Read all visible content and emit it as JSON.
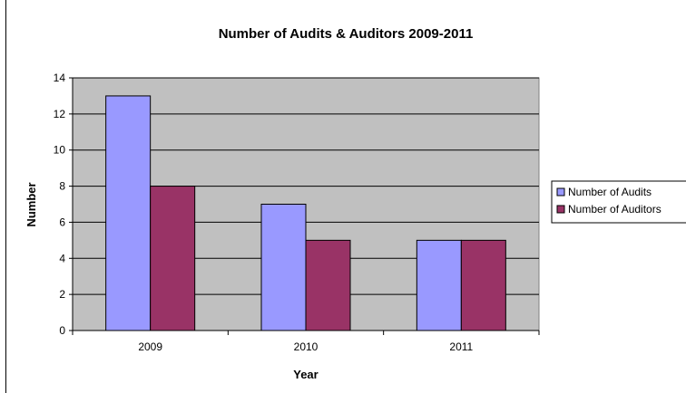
{
  "chart_data": {
    "type": "bar",
    "title": "Number of Audits & Auditors 2009-2011",
    "xlabel": "Year",
    "ylabel": "Number",
    "categories": [
      "2009",
      "2010",
      "2011"
    ],
    "ylim": [
      0,
      14
    ],
    "yticks": [
      "0",
      "2",
      "4",
      "6",
      "8",
      "10",
      "12",
      "14"
    ],
    "grid": true,
    "legend_position": "right",
    "plot_background": "#c0c0c0",
    "series": [
      {
        "name": "Number of Audits",
        "values": [
          13,
          7,
          5
        ],
        "color": "#9999ff"
      },
      {
        "name": "Number of Auditors",
        "values": [
          8,
          5,
          5
        ],
        "color": "#993366"
      }
    ]
  }
}
